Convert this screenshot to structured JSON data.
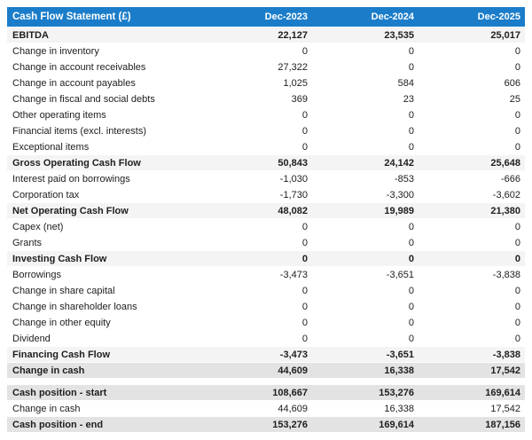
{
  "table": {
    "title": "Cash Flow Statement (£)",
    "columns": [
      "Dec-2023",
      "Dec-2024",
      "Dec-2025"
    ],
    "rows": [
      {
        "label": "EBITDA",
        "values": [
          "22,127",
          "23,535",
          "25,017"
        ],
        "style": "subtotal"
      },
      {
        "label": "Change in inventory",
        "values": [
          "0",
          "0",
          "0"
        ],
        "style": "normal"
      },
      {
        "label": "Change in account receivables",
        "values": [
          "27,322",
          "0",
          "0"
        ],
        "style": "normal"
      },
      {
        "label": "Change in account payables",
        "values": [
          "1,025",
          "584",
          "606"
        ],
        "style": "normal"
      },
      {
        "label": "Change in fiscal and social debts",
        "values": [
          "369",
          "23",
          "25"
        ],
        "style": "normal"
      },
      {
        "label": "Other operating items",
        "values": [
          "0",
          "0",
          "0"
        ],
        "style": "normal"
      },
      {
        "label": "Financial items (excl. interests)",
        "values": [
          "0",
          "0",
          "0"
        ],
        "style": "normal"
      },
      {
        "label": "Exceptional items",
        "values": [
          "0",
          "0",
          "0"
        ],
        "style": "normal"
      },
      {
        "label": "Gross Operating Cash Flow",
        "values": [
          "50,843",
          "24,142",
          "25,648"
        ],
        "style": "subtotal"
      },
      {
        "label": "Interest paid on borrowings",
        "values": [
          "-1,030",
          "-853",
          "-666"
        ],
        "style": "normal"
      },
      {
        "label": "Corporation tax",
        "values": [
          "-1,730",
          "-3,300",
          "-3,602"
        ],
        "style": "normal"
      },
      {
        "label": "Net Operating Cash Flow",
        "values": [
          "48,082",
          "19,989",
          "21,380"
        ],
        "style": "subtotal"
      },
      {
        "label": "Capex (net)",
        "values": [
          "0",
          "0",
          "0"
        ],
        "style": "normal"
      },
      {
        "label": "Grants",
        "values": [
          "0",
          "0",
          "0"
        ],
        "style": "normal"
      },
      {
        "label": "Investing Cash Flow",
        "values": [
          "0",
          "0",
          "0"
        ],
        "style": "subtotal"
      },
      {
        "label": "Borrowings",
        "values": [
          "-3,473",
          "-3,651",
          "-3,838"
        ],
        "style": "normal"
      },
      {
        "label": "Change in share capital",
        "values": [
          "0",
          "0",
          "0"
        ],
        "style": "normal"
      },
      {
        "label": "Change in shareholder loans",
        "values": [
          "0",
          "0",
          "0"
        ],
        "style": "normal"
      },
      {
        "label": "Change in other equity",
        "values": [
          "0",
          "0",
          "0"
        ],
        "style": "normal"
      },
      {
        "label": "Dividend",
        "values": [
          "0",
          "0",
          "0"
        ],
        "style": "normal"
      },
      {
        "label": "Financing Cash Flow",
        "values": [
          "-3,473",
          "-3,651",
          "-3,838"
        ],
        "style": "subtotal"
      },
      {
        "label": "Change in cash",
        "values": [
          "44,609",
          "16,338",
          "17,542"
        ],
        "style": "emphasis"
      },
      {
        "label": "Cash position - start",
        "values": [
          "108,667",
          "153,276",
          "169,614"
        ],
        "style": "emphasis",
        "gap_before": true
      },
      {
        "label": "Change in cash",
        "values": [
          "44,609",
          "16,338",
          "17,542"
        ],
        "style": "normal"
      },
      {
        "label": "Cash position - end",
        "values": [
          "153,276",
          "169,614",
          "187,156"
        ],
        "style": "emphasis"
      }
    ],
    "colors": {
      "header_bg": "#1b7dc9",
      "header_text": "#ffffff",
      "subtotal_bg": "#f4f4f4",
      "emphasis_bg": "#e3e3e3",
      "text": "#202020"
    }
  }
}
